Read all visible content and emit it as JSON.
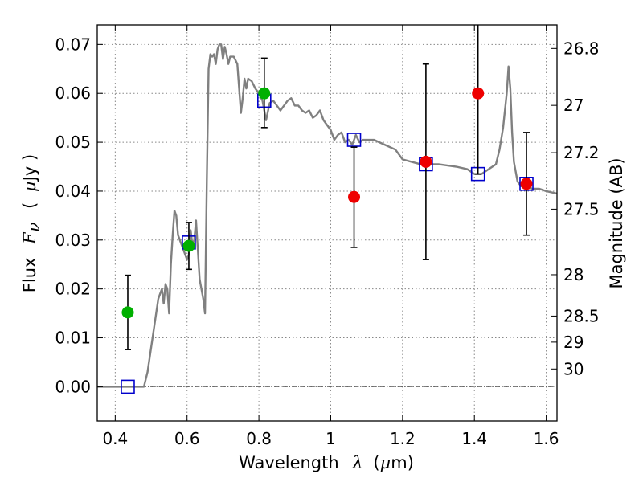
{
  "chart_data": {
    "type": "scatter",
    "title": "",
    "xlabel_parts": {
      "text": "Wavelength",
      "symbol": "λ",
      "unit_open": "(",
      "unit_mu": "μ",
      "unit_rest": "m)"
    },
    "ylabel_parts": {
      "text": "Flux",
      "symbol": "F",
      "subscript": "ν",
      "unit_open": "(",
      "unit_mu": "μ",
      "unit_rest": "Jy )"
    },
    "y2label": "Magnitude (AB)",
    "xlim": [
      0.35,
      1.63
    ],
    "ylim": [
      -0.007,
      0.074
    ],
    "grid": true,
    "x_ticks": [
      0.4,
      0.6,
      0.8,
      1.0,
      1.2,
      1.4,
      1.6
    ],
    "x_tick_labels": [
      "0.4",
      "0.6",
      "0.8",
      "1",
      "1.2",
      "1.4",
      "1.6"
    ],
    "y_ticks": [
      0.0,
      0.01,
      0.02,
      0.03,
      0.04,
      0.05,
      0.06,
      0.07
    ],
    "y_tick_labels": [
      "0.00",
      "0.01",
      "0.02",
      "0.03",
      "0.04",
      "0.05",
      "0.06",
      "0.07"
    ],
    "y2_ticks": [
      26.8,
      27.0,
      27.2,
      27.5,
      28.0,
      28.5,
      29.0,
      30.0
    ],
    "y2_tick_labels": [
      "26.8",
      "27",
      "27.2",
      "27.5",
      "28",
      "28.5",
      "29",
      "30"
    ],
    "colors": {
      "model": "#808080",
      "model_photometry": "#0000cc",
      "green_points": "#00b000",
      "red_points": "#ee0000",
      "errorbars": "#000000",
      "zero_line": "#555555",
      "grid": "#888888"
    },
    "series": [
      {
        "kind": "line",
        "x": [
          0.35,
          0.48,
          0.49,
          0.5,
          0.51,
          0.52,
          0.53,
          0.535,
          0.54,
          0.545,
          0.55,
          0.555,
          0.56,
          0.565,
          0.57,
          0.575,
          0.58,
          0.585,
          0.59,
          0.595,
          0.6,
          0.605,
          0.61,
          0.615,
          0.62,
          0.625,
          0.63,
          0.635,
          0.64,
          0.645,
          0.65,
          0.655,
          0.66,
          0.665,
          0.67,
          0.675,
          0.68,
          0.685,
          0.69,
          0.695,
          0.7,
          0.705,
          0.71,
          0.715,
          0.72,
          0.73,
          0.74,
          0.745,
          0.75,
          0.755,
          0.76,
          0.765,
          0.77,
          0.78,
          0.79,
          0.8,
          0.81,
          0.82,
          0.83,
          0.84,
          0.85,
          0.86,
          0.87,
          0.88,
          0.89,
          0.9,
          0.91,
          0.92,
          0.93,
          0.94,
          0.95,
          0.96,
          0.97,
          0.98,
          0.99,
          1.0,
          1.01,
          1.02,
          1.03,
          1.04,
          1.05,
          1.06,
          1.07,
          1.08,
          1.09,
          1.1,
          1.12,
          1.15,
          1.18,
          1.2,
          1.25,
          1.3,
          1.35,
          1.38,
          1.4,
          1.42,
          1.44,
          1.46,
          1.47,
          1.48,
          1.49,
          1.495,
          1.5,
          1.505,
          1.51,
          1.52,
          1.53,
          1.54,
          1.56,
          1.58,
          1.6,
          1.63
        ],
        "y": [
          0.0,
          0.0,
          0.003,
          0.008,
          0.013,
          0.018,
          0.02,
          0.017,
          0.021,
          0.02,
          0.015,
          0.025,
          0.031,
          0.036,
          0.035,
          0.031,
          0.03,
          0.029,
          0.028,
          0.027,
          0.026,
          0.027,
          0.032,
          0.029,
          0.03,
          0.034,
          0.028,
          0.022,
          0.02,
          0.018,
          0.015,
          0.042,
          0.065,
          0.068,
          0.0675,
          0.068,
          0.066,
          0.069,
          0.07,
          0.07,
          0.067,
          0.0695,
          0.068,
          0.066,
          0.0675,
          0.0675,
          0.066,
          0.061,
          0.056,
          0.059,
          0.063,
          0.061,
          0.063,
          0.0625,
          0.061,
          0.06,
          0.0585,
          0.0545,
          0.058,
          0.0585,
          0.0575,
          0.0565,
          0.0575,
          0.0585,
          0.059,
          0.0575,
          0.0575,
          0.0565,
          0.056,
          0.0565,
          0.055,
          0.0555,
          0.0565,
          0.0545,
          0.0535,
          0.0525,
          0.0505,
          0.0515,
          0.052,
          0.05,
          0.0505,
          0.0495,
          0.0515,
          0.05,
          0.0505,
          0.0505,
          0.0505,
          0.0495,
          0.0485,
          0.0465,
          0.0455,
          0.0455,
          0.045,
          0.0445,
          0.0435,
          0.0435,
          0.0445,
          0.0455,
          0.0485,
          0.053,
          0.06,
          0.0655,
          0.061,
          0.052,
          0.046,
          0.042,
          0.041,
          0.0415,
          0.0405,
          0.0405,
          0.04,
          0.0395
        ]
      },
      {
        "kind": "squares",
        "x": [
          0.435,
          0.605,
          0.815,
          1.065,
          1.265,
          1.41,
          1.545
        ],
        "y": [
          0.0,
          0.0295,
          0.0585,
          0.0505,
          0.0455,
          0.0435,
          0.0415
        ]
      },
      {
        "kind": "points",
        "color_key": "green_points",
        "x": [
          0.435,
          0.605,
          0.815
        ],
        "y": [
          0.0152,
          0.0288,
          0.06
        ],
        "err_low": [
          0.0076,
          0.0048,
          0.007
        ],
        "err_high": [
          0.0076,
          0.0048,
          0.0072
        ]
      },
      {
        "kind": "points",
        "color_key": "red_points",
        "x": [
          1.065,
          1.265,
          1.41,
          1.545
        ],
        "y": [
          0.0388,
          0.046,
          0.06,
          0.0415
        ],
        "err_low": [
          0.0103,
          0.02,
          0.0165,
          0.0105
        ],
        "err_high": [
          0.0102,
          0.02,
          0.0155,
          0.0105
        ]
      }
    ]
  }
}
